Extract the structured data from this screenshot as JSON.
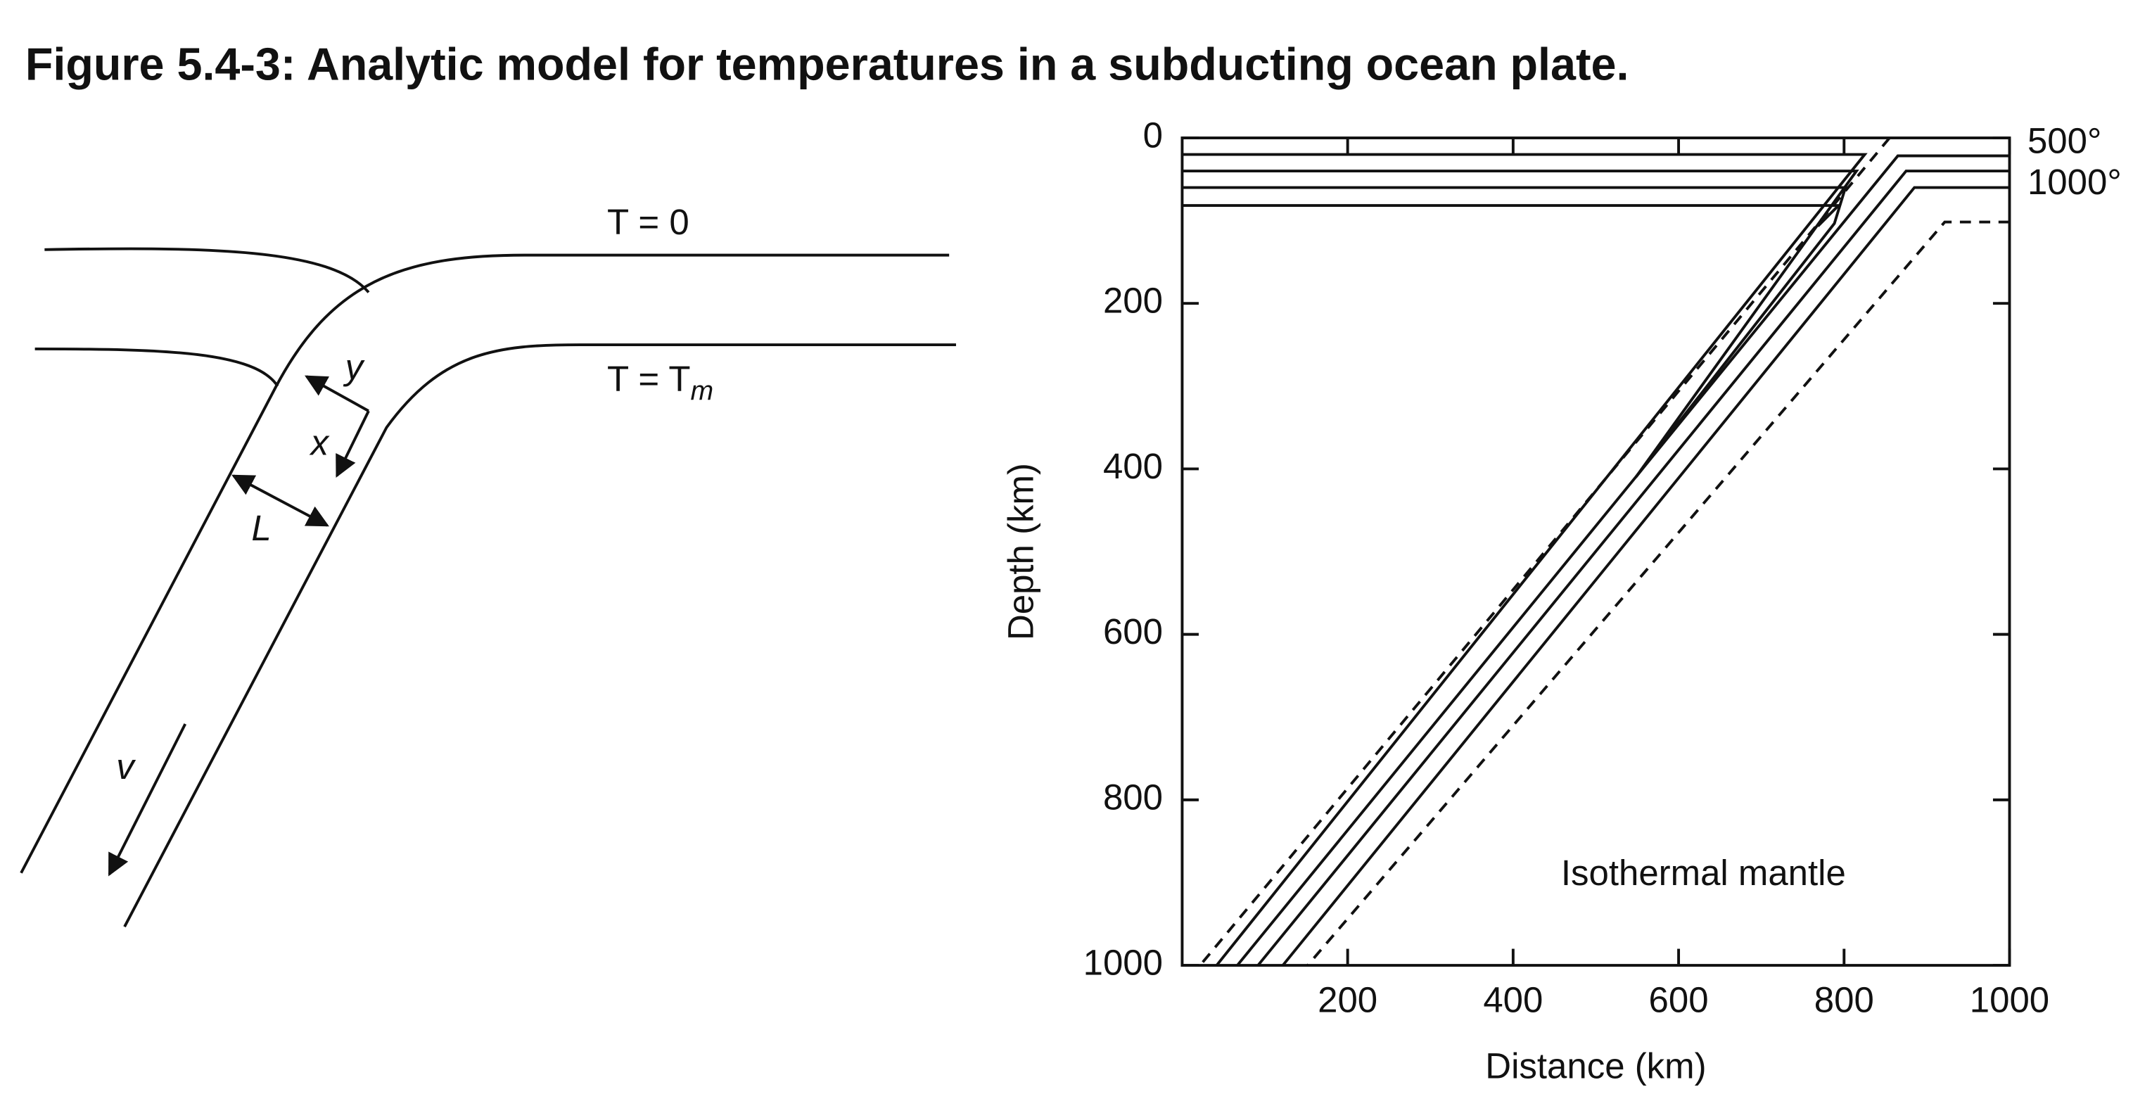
{
  "title": "Figure 5.4-3: Analytic model for temperatures in a subducting ocean plate.",
  "diagram": {
    "top_boundary": "T = 0",
    "bottom_boundary": {
      "text": "T = T",
      "subscript": "m"
    },
    "y_axis": "y",
    "x_axis": "x",
    "thickness": "L",
    "velocity": "v"
  },
  "chart_data": {
    "type": "line",
    "xlabel": "Distance (km)",
    "ylabel": "Depth (km)",
    "xlim": [
      0,
      1000
    ],
    "ylim": [
      0,
      1000
    ],
    "y_inverted": true,
    "xticks": [
      200,
      400,
      600,
      800,
      1000
    ],
    "yticks": [
      0,
      200,
      400,
      600,
      800,
      1000
    ],
    "annotations": [
      "500°",
      "1000°",
      "Isothermal mantle"
    ]
  }
}
